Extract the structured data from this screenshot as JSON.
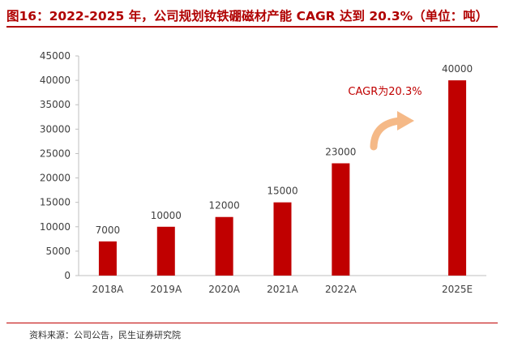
{
  "title": "图16：2022-2025 年，公司规划钕铁硼磁材产能 CAGR 达到 20.3%（单位：吨）",
  "source": "资料来源：公司公告，民生证券研究院",
  "colors": {
    "bar": "#c00000",
    "title": "#b00000",
    "annotation": "#c00000",
    "arrow": "#f5b987",
    "axis": "#bfbfbf",
    "text": "#404040"
  },
  "chart_data": {
    "type": "bar",
    "title": "2022-2025 年，公司规划钕铁硼磁材产能 CAGR 达到 20.3%（单位：吨）",
    "unit": "吨",
    "xlabel": "",
    "ylabel": "",
    "ylim": [
      0,
      45000
    ],
    "yticks": [
      0,
      5000,
      10000,
      15000,
      20000,
      25000,
      30000,
      35000,
      40000,
      45000
    ],
    "grid": false,
    "categories": [
      "2018A",
      "2019A",
      "2020A",
      "2021A",
      "2022A",
      "",
      "2025E"
    ],
    "values": [
      7000,
      10000,
      12000,
      15000,
      23000,
      null,
      40000
    ],
    "data_labels": [
      "7000",
      "10000",
      "12000",
      "15000",
      "23000",
      "",
      "40000"
    ],
    "annotation": "CAGR为20.3%"
  }
}
